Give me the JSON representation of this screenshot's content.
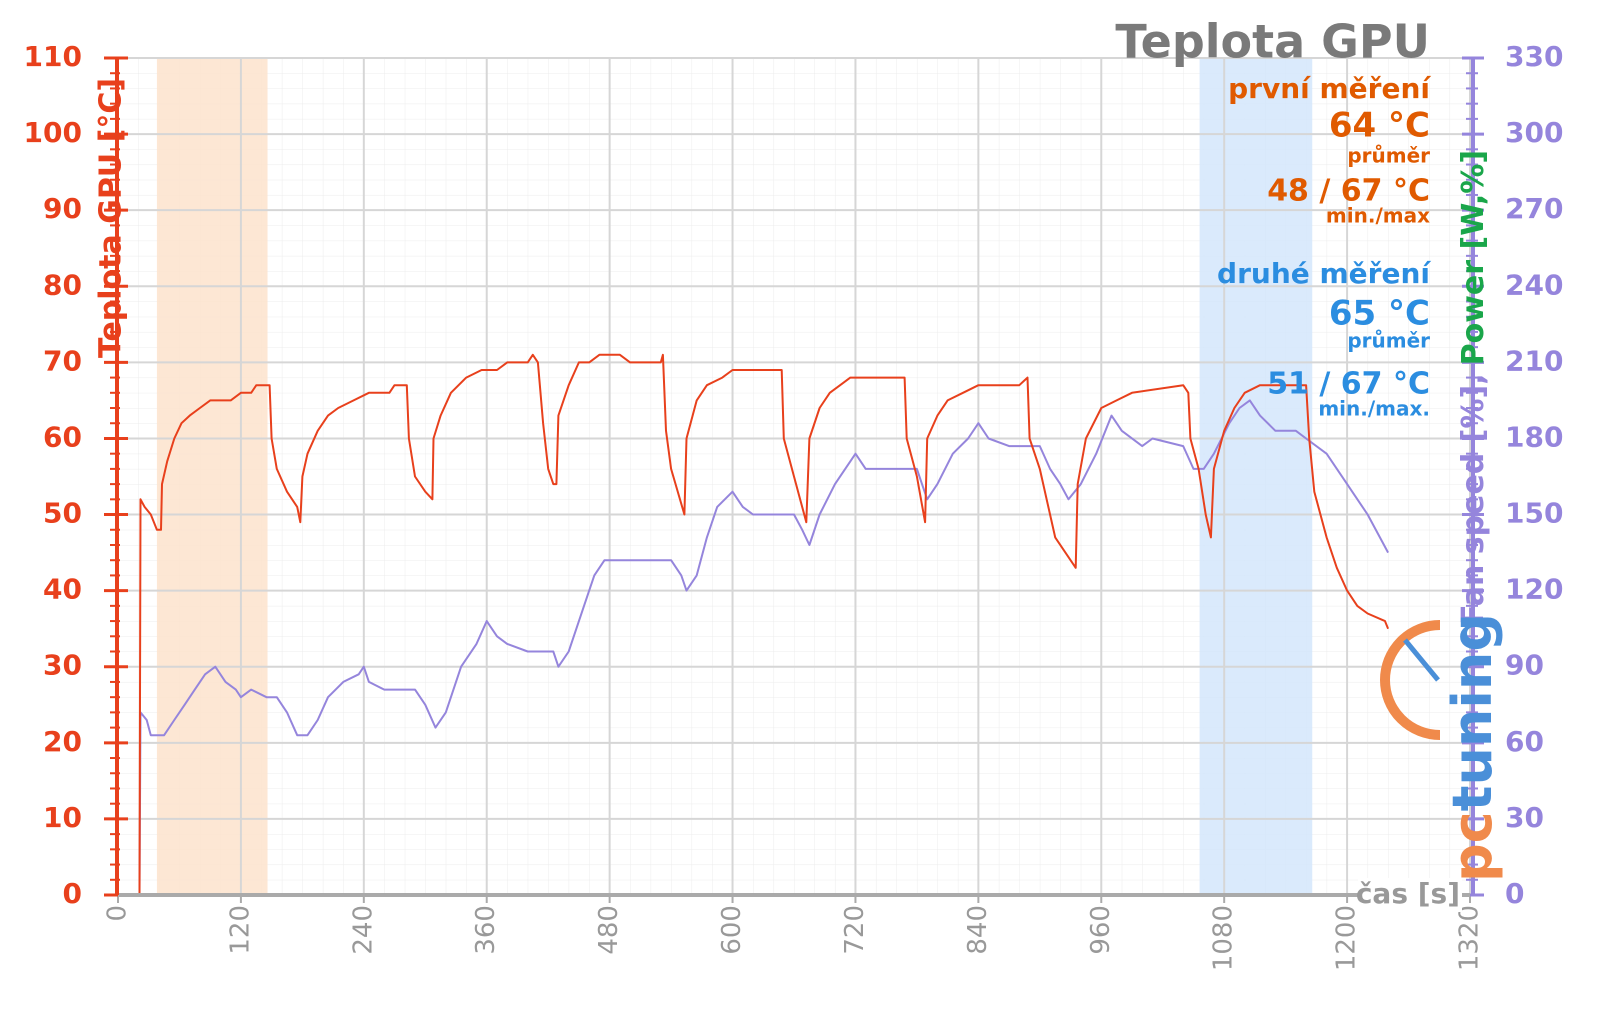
{
  "chart_data": {
    "type": "line",
    "title": "Teplota GPU",
    "y_label": "Teplota GPU [°C]",
    "y2_label": [
      "Fan speed [%],",
      "Power [W,%]"
    ],
    "y2_label_colors": [
      "#9585dc",
      "#1aa64a"
    ],
    "x_label": "čas [s]",
    "logo": [
      "pc",
      "tuning"
    ],
    "xlim": [
      0,
      1320
    ],
    "xticks": [
      0,
      120,
      240,
      360,
      480,
      600,
      720,
      840,
      960,
      1080,
      1200,
      1320
    ],
    "ylim": [
      0,
      110
    ],
    "yticks": [
      0,
      10,
      20,
      30,
      40,
      50,
      60,
      70,
      80,
      90,
      100,
      110
    ],
    "y2lim": [
      0,
      330
    ],
    "y2ticks": [
      0,
      30,
      60,
      90,
      120,
      150,
      180,
      210,
      240,
      270,
      300,
      330
    ],
    "grid": true,
    "bands": [
      {
        "x": [
          38,
          146
        ],
        "color": "#fde3cc"
      },
      {
        "x": [
          1056,
          1166
        ],
        "color": "#d3e6fb"
      }
    ],
    "annotations": [
      {
        "text": "první měření",
        "color": "#e05a00"
      },
      {
        "text": "64 °C",
        "color": "#e05a00"
      },
      {
        "text": "průměr",
        "color": "#e05a00"
      },
      {
        "text": "48 / 67 °C",
        "color": "#e05a00"
      },
      {
        "text": "min./max",
        "color": "#e05a00"
      },
      {
        "text": "druhé měření",
        "color": "#2b8de0"
      },
      {
        "text": "65 °C",
        "color": "#2b8de0"
      },
      {
        "text": "průměr",
        "color": "#2b8de0"
      },
      {
        "text": "51 / 67 °C",
        "color": "#2b8de0"
      },
      {
        "text": "min./max.",
        "color": "#2b8de0"
      }
    ],
    "series": [
      {
        "color": "#e8401c",
        "x": [
          0,
          21,
          22,
          26,
          32,
          38,
          42,
          43,
          48,
          55,
          62,
          70,
          80,
          90,
          110,
          120,
          130,
          135,
          148,
          150,
          155,
          165,
          175,
          178,
          180,
          185,
          195,
          205,
          215,
          230,
          245,
          265,
          270,
          282,
          284,
          290,
          300,
          307,
          308,
          315,
          325,
          340,
          355,
          370,
          380,
          400,
          405,
          410,
          415,
          420,
          425,
          428,
          430,
          440,
          450,
          460,
          470,
          490,
          500,
          530,
          532,
          535,
          540,
          553,
          555,
          565,
          575,
          590,
          600,
          625,
          648,
          650,
          660,
          672,
          675,
          685,
          695,
          705,
          715,
          750,
          768,
          770,
          780,
          788,
          790,
          800,
          810,
          825,
          840,
          880,
          888,
          890,
          900,
          915,
          935,
          937,
          945,
          960,
          975,
          990,
          1040,
          1045,
          1047,
          1055,
          1062,
          1067,
          1070,
          1080,
          1090,
          1100,
          1115,
          1160,
          1163,
          1168,
          1180,
          1190,
          1200,
          1210,
          1220,
          1237,
          1240
        ],
        "values": [
          0,
          0,
          52,
          51,
          50,
          48,
          48,
          54,
          57,
          60,
          62,
          63,
          64,
          65,
          65,
          66,
          66,
          67,
          67,
          60,
          56,
          53,
          51,
          49,
          55,
          58,
          61,
          63,
          64,
          65,
          66,
          66,
          67,
          67,
          60,
          55,
          53,
          52,
          60,
          63,
          66,
          68,
          69,
          69,
          70,
          70,
          71,
          70,
          62,
          56,
          54,
          54,
          63,
          67,
          70,
          70,
          71,
          71,
          70,
          70,
          71,
          61,
          56,
          50,
          60,
          65,
          67,
          68,
          69,
          69,
          69,
          60,
          55,
          49,
          60,
          64,
          66,
          67,
          68,
          68,
          68,
          60,
          55,
          49,
          60,
          63,
          65,
          66,
          67,
          67,
          68,
          60,
          56,
          47,
          43,
          54,
          60,
          64,
          65,
          66,
          67,
          66,
          60,
          56,
          50,
          47,
          56,
          61,
          64,
          66,
          67,
          67,
          60,
          53,
          47,
          43,
          40,
          38,
          37,
          36,
          35
        ]
      },
      {
        "color": "#9585dc",
        "axis": "y2",
        "x": [
          0,
          21,
          22,
          28,
          32,
          45,
          55,
          65,
          75,
          85,
          95,
          105,
          115,
          120,
          130,
          145,
          155,
          165,
          175,
          185,
          195,
          205,
          220,
          235,
          240,
          245,
          260,
          290,
          300,
          310,
          320,
          335,
          350,
          360,
          370,
          380,
          400,
          425,
          430,
          440,
          455,
          465,
          475,
          540,
          550,
          555,
          565,
          575,
          585,
          600,
          610,
          620,
          660,
          668,
          675,
          685,
          700,
          710,
          720,
          730,
          780,
          785,
          790,
          800,
          815,
          830,
          840,
          850,
          870,
          900,
          910,
          920,
          928,
          940,
          955,
          970,
          980,
          1000,
          1010,
          1040,
          1050,
          1060,
          1070,
          1085,
          1095,
          1105,
          1115,
          1130,
          1150,
          1160,
          1180,
          1200,
          1220,
          1240
        ],
        "values": [
          0,
          0,
          72,
          69,
          63,
          63,
          69,
          75,
          81,
          87,
          90,
          84,
          81,
          78,
          81,
          78,
          78,
          72,
          63,
          63,
          69,
          78,
          84,
          87,
          90,
          84,
          81,
          81,
          75,
          66,
          72,
          90,
          99,
          108,
          102,
          99,
          96,
          96,
          90,
          96,
          114,
          126,
          132,
          132,
          126,
          120,
          126,
          141,
          153,
          159,
          153,
          150,
          150,
          144,
          138,
          150,
          162,
          168,
          174,
          168,
          168,
          162,
          156,
          162,
          174,
          180,
          186,
          180,
          177,
          177,
          168,
          162,
          156,
          162,
          174,
          189,
          183,
          177,
          180,
          177,
          168,
          168,
          174,
          186,
          192,
          195,
          189,
          183,
          183,
          180,
          174,
          162,
          150,
          135
        ]
      }
    ]
  }
}
